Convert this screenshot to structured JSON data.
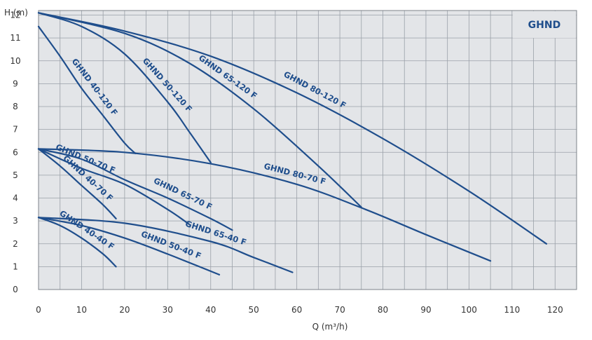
{
  "chart_data": {
    "type": "line",
    "xlabel": "Q (m³/h)",
    "ylabel": "H (m)",
    "xlim": [
      0,
      125
    ],
    "ylim": [
      0,
      12.2
    ],
    "xticks": [
      0,
      10,
      20,
      30,
      40,
      50,
      60,
      70,
      80,
      90,
      100,
      110,
      120
    ],
    "yticks": [
      0,
      1,
      2,
      3,
      4,
      5,
      6,
      7,
      8,
      9,
      10,
      11,
      12
    ],
    "grid": true,
    "colors": {
      "curve": "#1f4e8c",
      "grid": "#9aa0a8",
      "plot_bg": "#e3e5e8",
      "badge_bg": "#e3e5e8"
    },
    "badge": "GHND",
    "series": [
      {
        "name": "GHND 40-120 F",
        "points": [
          [
            0,
            11.5
          ],
          [
            5,
            10.2
          ],
          [
            10,
            8.8
          ],
          [
            15,
            7.6
          ],
          [
            20,
            6.4
          ],
          [
            22.5,
            5.95
          ]
        ]
      },
      {
        "name": "GHND 50-120 F",
        "points": [
          [
            0,
            12.1
          ],
          [
            10,
            11.5
          ],
          [
            20,
            10.3
          ],
          [
            30,
            8.2
          ],
          [
            35,
            6.9
          ],
          [
            40,
            5.55
          ]
        ]
      },
      {
        "name": "GHND 65-120 F",
        "points": [
          [
            0,
            12.1
          ],
          [
            20,
            11.2
          ],
          [
            35,
            9.9
          ],
          [
            50,
            7.9
          ],
          [
            65,
            5.4
          ],
          [
            75,
            3.6
          ]
        ]
      },
      {
        "name": "GHND 80-120 F",
        "points": [
          [
            0,
            12.1
          ],
          [
            20,
            11.3
          ],
          [
            40,
            10.2
          ],
          [
            60,
            8.6
          ],
          [
            80,
            6.6
          ],
          [
            100,
            4.3
          ],
          [
            118,
            2.0
          ]
        ]
      },
      {
        "name": "GHND 40-70 F",
        "points": [
          [
            0,
            6.15
          ],
          [
            5,
            5.4
          ],
          [
            10,
            4.55
          ],
          [
            15,
            3.7
          ],
          [
            18,
            3.1
          ]
        ]
      },
      {
        "name": "GHND 50-70 F",
        "points": [
          [
            0,
            6.15
          ],
          [
            10,
            5.3
          ],
          [
            20,
            4.6
          ],
          [
            30,
            3.5
          ],
          [
            35,
            2.85
          ]
        ]
      },
      {
        "name": "GHND 65-70 F",
        "points": [
          [
            0,
            6.15
          ],
          [
            10,
            5.7
          ],
          [
            20,
            4.8
          ],
          [
            30,
            4.0
          ],
          [
            40,
            3.1
          ],
          [
            45,
            2.6
          ]
        ]
      },
      {
        "name": "GHND 80-70 F",
        "points": [
          [
            0,
            6.15
          ],
          [
            20,
            6.0
          ],
          [
            40,
            5.5
          ],
          [
            60,
            4.6
          ],
          [
            76,
            3.5
          ],
          [
            90,
            2.4
          ],
          [
            105,
            1.25
          ]
        ]
      },
      {
        "name": "GHND 40-40 F",
        "points": [
          [
            0,
            3.15
          ],
          [
            5,
            2.8
          ],
          [
            10,
            2.25
          ],
          [
            15,
            1.55
          ],
          [
            18,
            1.0
          ]
        ]
      },
      {
        "name": "GHND 50-40 F",
        "points": [
          [
            0,
            3.15
          ],
          [
            10,
            2.8
          ],
          [
            20,
            2.25
          ],
          [
            30,
            1.55
          ],
          [
            42,
            0.65
          ]
        ]
      },
      {
        "name": "GHND 65-40 F",
        "points": [
          [
            0,
            3.15
          ],
          [
            20,
            2.9
          ],
          [
            40,
            2.1
          ],
          [
            50,
            1.4
          ],
          [
            59,
            0.75
          ]
        ]
      }
    ]
  }
}
